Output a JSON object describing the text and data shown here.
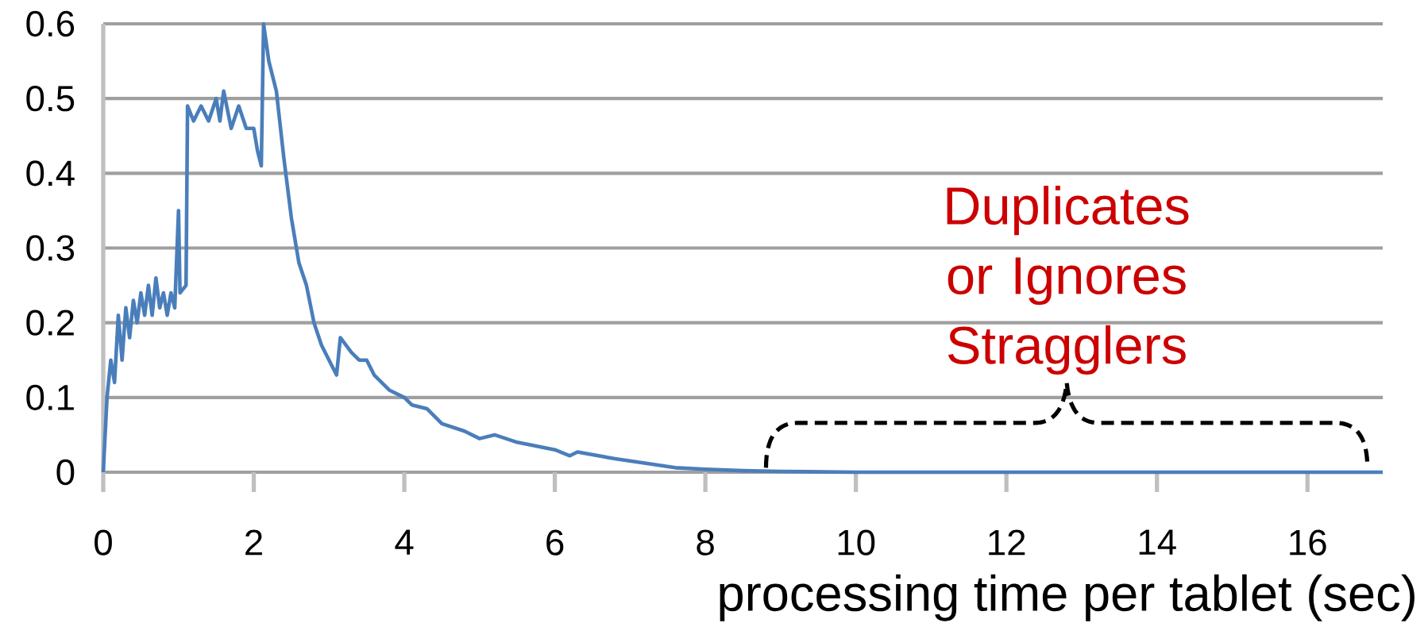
{
  "chart_data": {
    "type": "line",
    "xlabel": "processing time per tablet (sec)",
    "xlim": [
      0,
      17
    ],
    "xticks": [
      0,
      2,
      4,
      6,
      8,
      10,
      12,
      14,
      16
    ],
    "ylim": [
      0,
      0.6
    ],
    "yticks": [
      0,
      0.1,
      0.2,
      0.3,
      0.4,
      0.5,
      0.6
    ],
    "grid": "y",
    "marker": "none",
    "line_style": "solid",
    "series": [
      {
        "color": "#4a7ebb",
        "x": [
          0,
          0.05,
          0.1,
          0.15,
          0.2,
          0.25,
          0.3,
          0.35,
          0.4,
          0.45,
          0.5,
          0.55,
          0.6,
          0.65,
          0.7,
          0.75,
          0.8,
          0.85,
          0.9,
          0.95,
          1.0,
          1.02,
          1.1,
          1.12,
          1.2,
          1.3,
          1.4,
          1.5,
          1.55,
          1.6,
          1.7,
          1.8,
          1.9,
          2.0,
          2.05,
          2.1,
          2.13,
          2.2,
          2.3,
          2.4,
          2.5,
          2.6,
          2.7,
          2.8,
          2.9,
          3.0,
          3.1,
          3.15,
          3.3,
          3.4,
          3.5,
          3.6,
          3.8,
          4.0,
          4.1,
          4.3,
          4.5,
          4.8,
          5.0,
          5.2,
          5.5,
          6.0,
          6.2,
          6.3,
          6.8,
          7.2,
          7.6,
          8.0,
          8.5,
          9.0,
          10,
          17
        ],
        "values": [
          0,
          0.1,
          0.15,
          0.12,
          0.21,
          0.15,
          0.22,
          0.18,
          0.23,
          0.2,
          0.24,
          0.21,
          0.25,
          0.21,
          0.26,
          0.22,
          0.24,
          0.21,
          0.24,
          0.22,
          0.35,
          0.24,
          0.25,
          0.49,
          0.47,
          0.49,
          0.47,
          0.5,
          0.47,
          0.51,
          0.46,
          0.49,
          0.46,
          0.46,
          0.43,
          0.41,
          0.6,
          0.55,
          0.51,
          0.42,
          0.34,
          0.28,
          0.25,
          0.2,
          0.17,
          0.15,
          0.13,
          0.18,
          0.16,
          0.15,
          0.15,
          0.13,
          0.11,
          0.1,
          0.09,
          0.085,
          0.065,
          0.055,
          0.045,
          0.05,
          0.04,
          0.03,
          0.022,
          0.027,
          0.018,
          0.012,
          0.006,
          0.004,
          0.002,
          0.001,
          0,
          0
        ]
      }
    ],
    "annotations": [
      "Duplicates or Ignores Stragglers"
    ]
  }
}
